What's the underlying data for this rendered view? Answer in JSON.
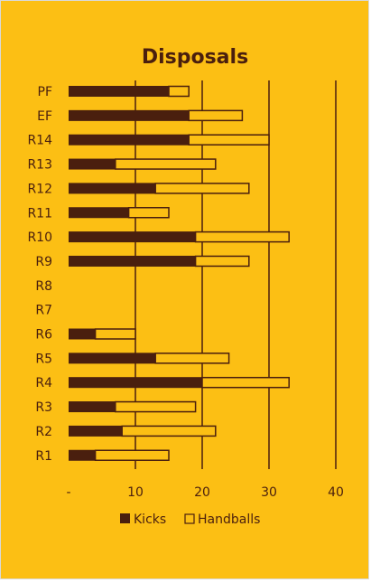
{
  "chart_data": {
    "type": "bar",
    "orientation": "horizontal",
    "stacked": true,
    "title": "Disposals",
    "categories": [
      "PF",
      "EF",
      "R14",
      "R13",
      "R12",
      "R11",
      "R10",
      "R9",
      "R8",
      "R7",
      "R6",
      "R5",
      "R4",
      "R3",
      "R2",
      "R1"
    ],
    "series": [
      {
        "name": "Kicks",
        "values": [
          15,
          18,
          18,
          7,
          13,
          9,
          19,
          19,
          0,
          0,
          4,
          13,
          20,
          7,
          8,
          4
        ]
      },
      {
        "name": "Handballs",
        "values": [
          3,
          8,
          12,
          15,
          14,
          6,
          14,
          8,
          0,
          0,
          6,
          11,
          13,
          12,
          14,
          11
        ]
      }
    ],
    "xlim": [
      0,
      40
    ],
    "xticks": [
      {
        "value": 0,
        "label": "-"
      },
      {
        "value": 10,
        "label": "10"
      },
      {
        "value": 20,
        "label": "20"
      },
      {
        "value": 30,
        "label": "30"
      },
      {
        "value": 40,
        "label": "40"
      }
    ],
    "grid": "vertical",
    "legend_position": "bottom",
    "colors": {
      "background": "#FCBF14",
      "kicks": "#4a1f0e",
      "handballs": "#FCBF14",
      "outline": "#4a1f0e",
      "text": "#4a1f0e"
    }
  }
}
